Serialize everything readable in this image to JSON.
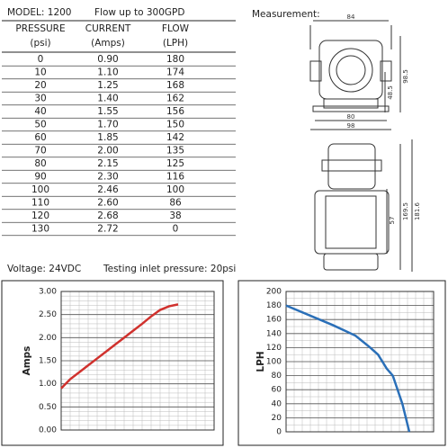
{
  "table": {
    "model": "MODEL: 1200",
    "note": "Flow up to 300GPD",
    "header": [
      "PRESSURE",
      "CURRENT",
      "FLOW"
    ],
    "units": [
      "(psi)",
      "(Amps)",
      "(LPH)"
    ],
    "rows": [
      [
        "0",
        "0.90",
        "180"
      ],
      [
        "10",
        "1.10",
        "174"
      ],
      [
        "20",
        "1.25",
        "168"
      ],
      [
        "30",
        "1.40",
        "162"
      ],
      [
        "40",
        "1.55",
        "156"
      ],
      [
        "50",
        "1.70",
        "150"
      ],
      [
        "60",
        "1.85",
        "142"
      ],
      [
        "70",
        "2.00",
        "135"
      ],
      [
        "80",
        "2.15",
        "125"
      ],
      [
        "90",
        "2.30",
        "116"
      ],
      [
        "100",
        "2.46",
        "100"
      ],
      [
        "110",
        "2.60",
        "86"
      ],
      [
        "120",
        "2.68",
        "38"
      ],
      [
        "130",
        "2.72",
        "0"
      ]
    ]
  },
  "footer": {
    "voltage": "Voltage:  24VDC",
    "inlet": "Testing inlet pressure:  20psi"
  },
  "measurement": {
    "title": "Measurement:",
    "dimensions": [
      "84",
      "98.5",
      "48.5",
      "80",
      "98",
      "57",
      "169.5",
      "181.6"
    ]
  },
  "chart_data": [
    {
      "type": "line",
      "y_label": "Amps",
      "color": "#d0312d",
      "grid": true,
      "xlim": [
        0,
        170
      ],
      "ylim": [
        0,
        3
      ],
      "yticks": [
        {
          "value": 0,
          "label": "0.00"
        },
        {
          "value": 0.5,
          "label": "0.50"
        },
        {
          "value": 1,
          "label": "1.00"
        },
        {
          "value": 1.5,
          "label": "1.50"
        },
        {
          "value": 2,
          "label": "2.00"
        },
        {
          "value": 2.5,
          "label": "2.50"
        },
        {
          "value": 3,
          "label": "3.00"
        }
      ],
      "x": [
        0,
        10,
        20,
        30,
        40,
        50,
        60,
        70,
        80,
        90,
        100,
        110,
        120,
        130
      ],
      "values": [
        0.9,
        1.1,
        1.25,
        1.4,
        1.55,
        1.7,
        1.85,
        2.0,
        2.15,
        2.3,
        2.46,
        2.6,
        2.68,
        2.72
      ]
    },
    {
      "type": "line",
      "y_label": "LPH",
      "color": "#2a6fb8",
      "grid": true,
      "xlim": [
        0,
        170
      ],
      "ylim": [
        0,
        200
      ],
      "yticks": [
        0,
        20,
        40,
        60,
        80,
        100,
        120,
        140,
        160,
        180,
        200
      ],
      "x": [
        0,
        54,
        80,
        97,
        106,
        116,
        123,
        134,
        142
      ],
      "values": [
        180,
        152,
        137,
        120,
        110,
        90,
        80,
        40,
        0
      ]
    }
  ]
}
